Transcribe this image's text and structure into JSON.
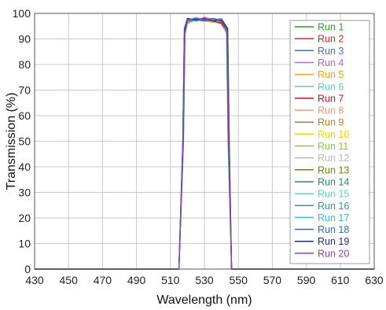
{
  "chart_data": {
    "type": "line",
    "title": "",
    "xlabel": "Wavelength (nm)",
    "ylabel": "Transmission (%)",
    "xlim": [
      430,
      630
    ],
    "ylim": [
      0,
      100
    ],
    "xticks": [
      430,
      450,
      470,
      490,
      510,
      530,
      550,
      570,
      590,
      610,
      630
    ],
    "yticks": [
      0,
      10,
      20,
      30,
      40,
      50,
      60,
      70,
      80,
      90,
      100
    ],
    "grid": true,
    "legend_position": "top-right",
    "passband": {
      "center_nm": 530,
      "approx_width_nm": 28,
      "peak_transmission_pct": 97
    },
    "series": [
      {
        "name": "Run 1",
        "color": "#2ca02c",
        "x": [
          430,
          515,
          517.4,
          518.3,
          520,
          525,
          530,
          535,
          540,
          543.4,
          544.3,
          546,
          630
        ],
        "y": [
          0,
          0,
          50,
          93,
          97,
          98,
          97.5,
          98,
          97,
          93,
          50,
          0,
          0
        ]
      },
      {
        "name": "Run 2",
        "color": "#d62728",
        "x": [
          430,
          515,
          517.6,
          518.5,
          520,
          525,
          530,
          535,
          540,
          543.2,
          544.1,
          546,
          630
        ],
        "y": [
          0,
          0,
          50,
          92,
          96.5,
          97.5,
          98,
          97,
          96.5,
          92,
          50,
          0,
          0
        ]
      },
      {
        "name": "Run 3",
        "color": "#4a6fb5",
        "x": [
          430,
          515,
          517.3,
          518.2,
          520,
          525,
          530,
          535,
          540,
          543.6,
          544.5,
          546,
          630
        ],
        "y": [
          0,
          0,
          50,
          94,
          97.5,
          98,
          97,
          97.5,
          98,
          94,
          50,
          0,
          0
        ]
      },
      {
        "name": "Run 4",
        "color": "#c760c7",
        "x": [
          430,
          515,
          517.5,
          518.4,
          520,
          525,
          530,
          535,
          540,
          543.3,
          544.2,
          546,
          630
        ],
        "y": [
          0,
          0,
          50,
          93,
          98,
          97,
          98.5,
          97.5,
          97,
          93,
          50,
          0,
          0
        ]
      },
      {
        "name": "Run 5",
        "color": "#f0a21e",
        "x": [
          430,
          515,
          517.7,
          518.6,
          520,
          525,
          530,
          535,
          540,
          543.0,
          543.9,
          546,
          630
        ],
        "y": [
          0,
          0,
          50,
          92,
          96,
          97.5,
          97,
          96.5,
          97,
          92,
          50,
          0,
          0
        ]
      },
      {
        "name": "Run 6",
        "color": "#5fc9d6",
        "x": [
          430,
          515,
          517.4,
          518.3,
          520,
          525,
          530,
          535,
          540,
          543.5,
          544.4,
          546,
          630
        ],
        "y": [
          0,
          0,
          50,
          93,
          97,
          98.5,
          97.5,
          98,
          97.5,
          93,
          50,
          0,
          0
        ]
      },
      {
        "name": "Run 7",
        "color": "#c0122e",
        "x": [
          430,
          515,
          517.5,
          518.4,
          520,
          525,
          530,
          535,
          540,
          543.7,
          544.6,
          546,
          630
        ],
        "y": [
          0,
          0,
          50,
          94,
          97.5,
          97,
          98,
          97,
          96,
          92,
          50,
          0,
          0
        ]
      },
      {
        "name": "Run 8",
        "color": "#ef9a78",
        "x": [
          430,
          515,
          517.6,
          518.5,
          520,
          525,
          530,
          535,
          540,
          543.1,
          544.0,
          546,
          630
        ],
        "y": [
          0,
          0,
          50,
          92,
          97,
          97.5,
          98,
          97.5,
          97,
          93,
          50,
          0,
          0
        ]
      },
      {
        "name": "Run 9",
        "color": "#b07d2a",
        "x": [
          430,
          515,
          517.3,
          518.2,
          520,
          525,
          530,
          535,
          540,
          543.4,
          544.3,
          546,
          630
        ],
        "y": [
          0,
          0,
          50,
          93,
          98,
          97.5,
          97,
          98,
          97.5,
          94,
          50,
          0,
          0
        ]
      },
      {
        "name": "Run 10",
        "color": "#e8d40a",
        "x": [
          430,
          515,
          517.5,
          518.4,
          520,
          525,
          530,
          535,
          540,
          543.2,
          544.1,
          546,
          630
        ],
        "y": [
          0,
          0,
          50,
          93,
          96.5,
          98,
          97.5,
          97,
          98,
          93,
          50,
          0,
          0
        ]
      },
      {
        "name": "Run 11",
        "color": "#8cc63e",
        "x": [
          430,
          515,
          517.4,
          518.3,
          520,
          525,
          530,
          535,
          540,
          543.5,
          544.4,
          546,
          630
        ],
        "y": [
          0,
          0,
          50,
          94,
          97.5,
          97,
          98,
          97.5,
          97,
          93,
          50,
          0,
          0
        ]
      },
      {
        "name": "Run 12",
        "color": "#b9b9b9",
        "x": [
          430,
          515,
          517.6,
          518.5,
          520,
          525,
          530,
          535,
          540,
          543.3,
          544.2,
          546,
          630
        ],
        "y": [
          0,
          0,
          50,
          92,
          97,
          97.5,
          97,
          98,
          97.5,
          93,
          50,
          0,
          0
        ]
      },
      {
        "name": "Run 13",
        "color": "#7a7a12",
        "x": [
          430,
          515,
          517.5,
          518.4,
          520,
          525,
          530,
          535,
          540,
          543.8,
          544.7,
          546,
          630
        ],
        "y": [
          0,
          0,
          50,
          93,
          97.5,
          98,
          97.5,
          97,
          98,
          94,
          50,
          0,
          0
        ]
      },
      {
        "name": "Run 14",
        "color": "#2e8b57",
        "x": [
          430,
          515,
          517.3,
          518.2,
          520,
          525,
          530,
          535,
          540,
          543.4,
          544.3,
          546,
          630
        ],
        "y": [
          0,
          0,
          50,
          94,
          98,
          97,
          98,
          97.5,
          97,
          93,
          50,
          0,
          0
        ]
      },
      {
        "name": "Run 15",
        "color": "#5fd0c4",
        "x": [
          430,
          515,
          517.7,
          518.6,
          520,
          525,
          530,
          535,
          540,
          543.1,
          544.0,
          546,
          630
        ],
        "y": [
          0,
          0,
          50,
          92,
          96.5,
          97.5,
          98,
          97,
          97.5,
          92,
          50,
          0,
          0
        ]
      },
      {
        "name": "Run 16",
        "color": "#2f9c8f",
        "x": [
          430,
          515,
          517.4,
          518.3,
          520,
          525,
          530,
          535,
          540,
          543.6,
          544.5,
          546,
          630
        ],
        "y": [
          0,
          0,
          50,
          93,
          97,
          98,
          97.5,
          98,
          97,
          94,
          50,
          0,
          0
        ]
      },
      {
        "name": "Run 17",
        "color": "#3fb6e3",
        "x": [
          430,
          515,
          517.5,
          518.4,
          520,
          525,
          530,
          535,
          540,
          543.3,
          544.2,
          546,
          630
        ],
        "y": [
          0,
          0,
          50,
          93,
          97.5,
          97,
          98,
          97.5,
          98,
          93,
          50,
          0,
          0
        ]
      },
      {
        "name": "Run 18",
        "color": "#2c6fb8",
        "x": [
          430,
          515,
          517.6,
          518.5,
          520,
          525,
          530,
          535,
          540,
          543.2,
          544.1,
          546,
          630
        ],
        "y": [
          0,
          0,
          50,
          92,
          97,
          97.5,
          97,
          98,
          97,
          93,
          50,
          0,
          0
        ]
      },
      {
        "name": "Run 19",
        "color": "#1f2f7a",
        "x": [
          430,
          515,
          517.4,
          518.3,
          520,
          525,
          530,
          535,
          540,
          543.5,
          544.4,
          546,
          630
        ],
        "y": [
          0,
          0,
          50,
          94,
          98,
          97.5,
          98,
          97,
          97.5,
          94,
          50,
          0,
          0
        ]
      },
      {
        "name": "Run 20",
        "color": "#8e44ad",
        "x": [
          430,
          515,
          517.5,
          518.4,
          520,
          525,
          530,
          535,
          540,
          543.4,
          544.3,
          546,
          630
        ],
        "y": [
          0,
          0,
          50,
          93,
          97.5,
          98,
          97.5,
          98,
          97,
          93,
          50,
          0,
          0
        ]
      }
    ]
  }
}
